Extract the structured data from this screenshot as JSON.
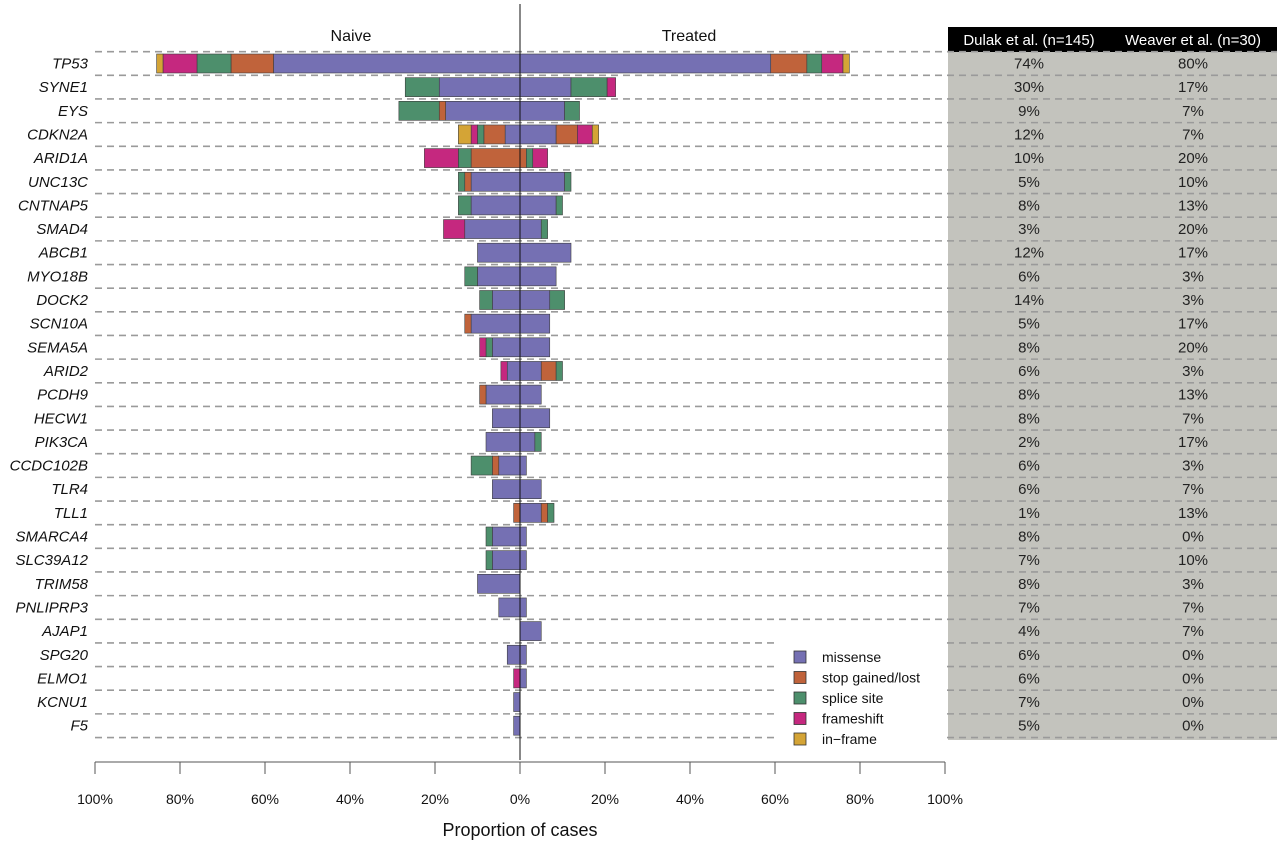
{
  "chart_data": {
    "type": "bar",
    "orientation": "horizontal-diverging",
    "panel_labels": {
      "left": "Naive",
      "right": "Treated"
    },
    "xlabel": "Proportion of cases",
    "xlim": [
      -100,
      100
    ],
    "xticks": [
      {
        "value": -100,
        "label": "100%"
      },
      {
        "value": -80,
        "label": "80%"
      },
      {
        "value": -60,
        "label": "60%"
      },
      {
        "value": -40,
        "label": "40%"
      },
      {
        "value": -20,
        "label": "20%"
      },
      {
        "value": 0,
        "label": "0%"
      },
      {
        "value": 20,
        "label": "20%"
      },
      {
        "value": 40,
        "label": "40%"
      },
      {
        "value": 60,
        "label": "60%"
      },
      {
        "value": 80,
        "label": "80%"
      },
      {
        "value": 100,
        "label": "100%"
      }
    ],
    "legend_position": "bottom-right",
    "mutation_types": [
      {
        "key": "missense",
        "label": "missense",
        "color": "#7570b3"
      },
      {
        "key": "stop",
        "label": "stop gained/lost",
        "color": "#c0633b"
      },
      {
        "key": "splice",
        "label": "splice site",
        "color": "#4d8f6c"
      },
      {
        "key": "frameshift",
        "label": "frameshift",
        "color": "#c5287f"
      },
      {
        "key": "inframe",
        "label": "in−frame",
        "color": "#d4a436"
      }
    ],
    "table": {
      "columns": [
        "Dulak et al.  (n=145)",
        "Weaver et al. (n=30)"
      ]
    },
    "genes": [
      {
        "name": "TP53",
        "naive": {
          "missense": 58,
          "stop": 10,
          "splice": 8,
          "frameshift": 8,
          "inframe": 1.5
        },
        "treated": {
          "missense": 59,
          "stop": 8.5,
          "splice": 3.5,
          "frameshift": 5,
          "inframe": 1.5
        },
        "dulak": "74%",
        "weaver": "80%"
      },
      {
        "name": "SYNE1",
        "naive": {
          "missense": 19,
          "stop": 0,
          "splice": 8,
          "frameshift": 0,
          "inframe": 0
        },
        "treated": {
          "missense": 12,
          "stop": 0,
          "splice": 8.5,
          "frameshift": 2,
          "inframe": 0
        },
        "dulak": "30%",
        "weaver": "17%"
      },
      {
        "name": "EYS",
        "naive": {
          "missense": 17.5,
          "stop": 1.5,
          "splice": 9.5,
          "frameshift": 0,
          "inframe": 0
        },
        "treated": {
          "missense": 10.5,
          "stop": 0,
          "splice": 3.5,
          "frameshift": 0,
          "inframe": 0
        },
        "dulak": "9%",
        "weaver": "7%"
      },
      {
        "name": "CDKN2A",
        "naive": {
          "missense": 3.5,
          "stop": 5,
          "splice": 1.5,
          "frameshift": 1.5,
          "inframe": 3
        },
        "treated": {
          "missense": 8.5,
          "stop": 5,
          "splice": 0,
          "frameshift": 3.5,
          "inframe": 1.5
        },
        "dulak": "12%",
        "weaver": "7%"
      },
      {
        "name": "ARID1A",
        "naive": {
          "missense": 0,
          "stop": 11.5,
          "splice": 3,
          "frameshift": 8,
          "inframe": 0
        },
        "treated": {
          "missense": 0,
          "stop": 1.5,
          "splice": 1.5,
          "frameshift": 3.5,
          "inframe": 0
        },
        "dulak": "10%",
        "weaver": "20%"
      },
      {
        "name": "UNC13C",
        "naive": {
          "missense": 11.5,
          "stop": 1.5,
          "splice": 1.5,
          "frameshift": 0,
          "inframe": 0
        },
        "treated": {
          "missense": 10.5,
          "stop": 0,
          "splice": 1.5,
          "frameshift": 0,
          "inframe": 0
        },
        "dulak": "5%",
        "weaver": "10%"
      },
      {
        "name": "CNTNAP5",
        "naive": {
          "missense": 11.5,
          "stop": 0,
          "splice": 3,
          "frameshift": 0,
          "inframe": 0
        },
        "treated": {
          "missense": 8.5,
          "stop": 0,
          "splice": 1.5,
          "frameshift": 0,
          "inframe": 0
        },
        "dulak": "8%",
        "weaver": "13%"
      },
      {
        "name": "SMAD4",
        "naive": {
          "missense": 13,
          "stop": 0,
          "splice": 0,
          "frameshift": 5,
          "inframe": 0
        },
        "treated": {
          "missense": 5,
          "stop": 0,
          "splice": 1.5,
          "frameshift": 0,
          "inframe": 0
        },
        "dulak": "3%",
        "weaver": "20%"
      },
      {
        "name": "ABCB1",
        "naive": {
          "missense": 10,
          "stop": 0,
          "splice": 0,
          "frameshift": 0,
          "inframe": 0
        },
        "treated": {
          "missense": 12,
          "stop": 0,
          "splice": 0,
          "frameshift": 0,
          "inframe": 0
        },
        "dulak": "12%",
        "weaver": "17%"
      },
      {
        "name": "MYO18B",
        "naive": {
          "missense": 10,
          "stop": 0,
          "splice": 3,
          "frameshift": 0,
          "inframe": 0
        },
        "treated": {
          "missense": 8.5,
          "stop": 0,
          "splice": 0,
          "frameshift": 0,
          "inframe": 0
        },
        "dulak": "6%",
        "weaver": "3%"
      },
      {
        "name": "DOCK2",
        "naive": {
          "missense": 6.5,
          "stop": 0,
          "splice": 3,
          "frameshift": 0,
          "inframe": 0
        },
        "treated": {
          "missense": 7,
          "stop": 0,
          "splice": 3.5,
          "frameshift": 0,
          "inframe": 0
        },
        "dulak": "14%",
        "weaver": "3%"
      },
      {
        "name": "SCN10A",
        "naive": {
          "missense": 11.5,
          "stop": 1.5,
          "splice": 0,
          "frameshift": 0,
          "inframe": 0
        },
        "treated": {
          "missense": 7,
          "stop": 0,
          "splice": 0,
          "frameshift": 0,
          "inframe": 0
        },
        "dulak": "5%",
        "weaver": "17%"
      },
      {
        "name": "SEMA5A",
        "naive": {
          "missense": 6.5,
          "stop": 0,
          "splice": 1.5,
          "frameshift": 1.5,
          "inframe": 0
        },
        "treated": {
          "missense": 7,
          "stop": 0,
          "splice": 0,
          "frameshift": 0,
          "inframe": 0
        },
        "dulak": "8%",
        "weaver": "20%"
      },
      {
        "name": "ARID2",
        "naive": {
          "missense": 3,
          "stop": 0,
          "splice": 0,
          "frameshift": 1.5,
          "inframe": 0
        },
        "treated": {
          "missense": 5,
          "stop": 3.5,
          "splice": 1.5,
          "frameshift": 0,
          "inframe": 0
        },
        "dulak": "6%",
        "weaver": "3%"
      },
      {
        "name": "PCDH9",
        "naive": {
          "missense": 8,
          "stop": 1.5,
          "splice": 0,
          "frameshift": 0,
          "inframe": 0
        },
        "treated": {
          "missense": 5,
          "stop": 0,
          "splice": 0,
          "frameshift": 0,
          "inframe": 0
        },
        "dulak": "8%",
        "weaver": "13%"
      },
      {
        "name": "HECW1",
        "naive": {
          "missense": 6.5,
          "stop": 0,
          "splice": 0,
          "frameshift": 0,
          "inframe": 0
        },
        "treated": {
          "missense": 7,
          "stop": 0,
          "splice": 0,
          "frameshift": 0,
          "inframe": 0
        },
        "dulak": "8%",
        "weaver": "7%"
      },
      {
        "name": "PIK3CA",
        "naive": {
          "missense": 8,
          "stop": 0,
          "splice": 0,
          "frameshift": 0,
          "inframe": 0
        },
        "treated": {
          "missense": 3.5,
          "stop": 0,
          "splice": 1.5,
          "frameshift": 0,
          "inframe": 0
        },
        "dulak": "2%",
        "weaver": "17%"
      },
      {
        "name": "CCDC102B",
        "naive": {
          "missense": 5,
          "stop": 1.5,
          "splice": 5,
          "frameshift": 0,
          "inframe": 0
        },
        "treated": {
          "missense": 1.5,
          "stop": 0,
          "splice": 0,
          "frameshift": 0,
          "inframe": 0
        },
        "dulak": "6%",
        "weaver": "3%"
      },
      {
        "name": "TLR4",
        "naive": {
          "missense": 6.5,
          "stop": 0,
          "splice": 0,
          "frameshift": 0,
          "inframe": 0
        },
        "treated": {
          "missense": 5,
          "stop": 0,
          "splice": 0,
          "frameshift": 0,
          "inframe": 0
        },
        "dulak": "6%",
        "weaver": "7%"
      },
      {
        "name": "TLL1",
        "naive": {
          "missense": 0,
          "stop": 1.5,
          "splice": 0,
          "frameshift": 0,
          "inframe": 0
        },
        "treated": {
          "missense": 5,
          "stop": 1.5,
          "splice": 1.5,
          "frameshift": 0,
          "inframe": 0
        },
        "dulak": "1%",
        "weaver": "13%"
      },
      {
        "name": "SMARCA4",
        "naive": {
          "missense": 6.5,
          "stop": 0,
          "splice": 1.5,
          "frameshift": 0,
          "inframe": 0
        },
        "treated": {
          "missense": 1.5,
          "stop": 0,
          "splice": 0,
          "frameshift": 0,
          "inframe": 0
        },
        "dulak": "8%",
        "weaver": "0%"
      },
      {
        "name": "SLC39A12",
        "naive": {
          "missense": 6.5,
          "stop": 0,
          "splice": 1.5,
          "frameshift": 0,
          "inframe": 0
        },
        "treated": {
          "missense": 1.5,
          "stop": 0,
          "splice": 0,
          "frameshift": 0,
          "inframe": 0
        },
        "dulak": "7%",
        "weaver": "10%"
      },
      {
        "name": "TRIM58",
        "naive": {
          "missense": 10,
          "stop": 0,
          "splice": 0,
          "frameshift": 0,
          "inframe": 0
        },
        "treated": {
          "missense": 0,
          "stop": 0,
          "splice": 0,
          "frameshift": 0,
          "inframe": 0
        },
        "dulak": "8%",
        "weaver": "3%"
      },
      {
        "name": "PNLIPRP3",
        "naive": {
          "missense": 5,
          "stop": 0,
          "splice": 0,
          "frameshift": 0,
          "inframe": 0
        },
        "treated": {
          "missense": 1.5,
          "stop": 0,
          "splice": 0,
          "frameshift": 0,
          "inframe": 0
        },
        "dulak": "7%",
        "weaver": "7%"
      },
      {
        "name": "AJAP1",
        "naive": {
          "missense": 0,
          "stop": 0,
          "splice": 0,
          "frameshift": 0,
          "inframe": 0
        },
        "treated": {
          "missense": 5,
          "stop": 0,
          "splice": 0,
          "frameshift": 0,
          "inframe": 0
        },
        "dulak": "4%",
        "weaver": "7%"
      },
      {
        "name": "SPG20",
        "naive": {
          "missense": 3,
          "stop": 0,
          "splice": 0,
          "frameshift": 0,
          "inframe": 0
        },
        "treated": {
          "missense": 1.5,
          "stop": 0,
          "splice": 0,
          "frameshift": 0,
          "inframe": 0
        },
        "dulak": "6%",
        "weaver": "0%"
      },
      {
        "name": "ELMO1",
        "naive": {
          "missense": 0,
          "stop": 0,
          "splice": 0,
          "frameshift": 1.5,
          "inframe": 0
        },
        "treated": {
          "missense": 1.5,
          "stop": 0,
          "splice": 0,
          "frameshift": 0,
          "inframe": 0
        },
        "dulak": "6%",
        "weaver": "0%"
      },
      {
        "name": "KCNU1",
        "naive": {
          "missense": 1.5,
          "stop": 0,
          "splice": 0,
          "frameshift": 0,
          "inframe": 0
        },
        "treated": {
          "missense": 0,
          "stop": 0,
          "splice": 0,
          "frameshift": 0,
          "inframe": 0
        },
        "dulak": "7%",
        "weaver": "0%"
      },
      {
        "name": "F5",
        "naive": {
          "missense": 1.5,
          "stop": 0,
          "splice": 0,
          "frameshift": 0,
          "inframe": 0
        },
        "treated": {
          "missense": 0,
          "stop": 0,
          "splice": 0,
          "frameshift": 0,
          "inframe": 0
        },
        "dulak": "5%",
        "weaver": "0%"
      }
    ]
  }
}
